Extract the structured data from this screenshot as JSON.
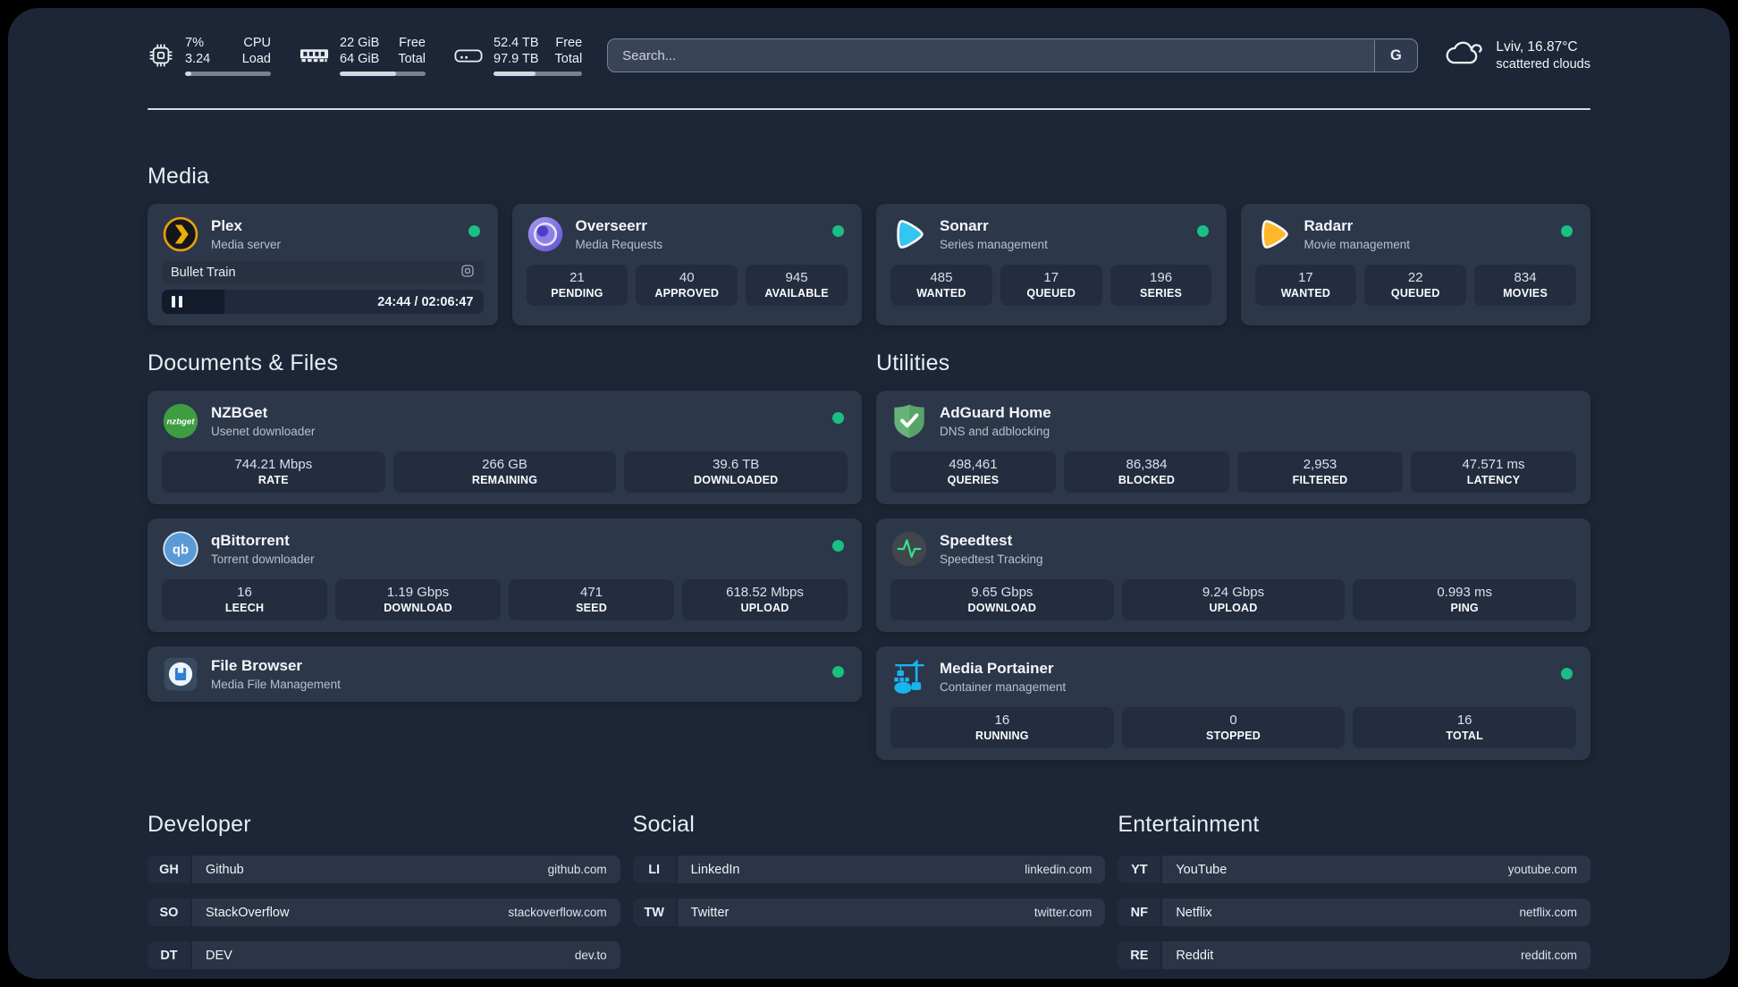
{
  "header": {
    "system_stats": [
      {
        "icon": "cpu-icon",
        "value_top": "7%",
        "label_top": "CPU",
        "value_bottom": "3.24",
        "label_bottom": "Load",
        "progress_pct": 7
      },
      {
        "icon": "memory-icon",
        "value_top": "22 GiB",
        "label_top": "Free",
        "value_bottom": "64 GiB",
        "label_bottom": "Total",
        "progress_pct": 66
      },
      {
        "icon": "storage-icon",
        "value_top": "52.4 TB",
        "label_top": "Free",
        "value_bottom": "97.9 TB",
        "label_bottom": "Total",
        "progress_pct": 47
      }
    ],
    "search": {
      "placeholder": "Search...",
      "engine_label": "G"
    },
    "weather": {
      "location_temperature": "Lviv, 16.87°C",
      "condition": "scattered clouds"
    }
  },
  "sections": {
    "media": {
      "title": "Media",
      "plex": {
        "name": "Plex",
        "description": "Media server",
        "status": "online",
        "now_playing": {
          "title": "Bullet Train",
          "time": "24:44 / 02:06:47",
          "progress_pct": 19.5
        }
      },
      "overseerr": {
        "name": "Overseerr",
        "description": "Media Requests",
        "status": "online",
        "stats": [
          {
            "value": "21",
            "label": "PENDING"
          },
          {
            "value": "40",
            "label": "APPROVED"
          },
          {
            "value": "945",
            "label": "AVAILABLE"
          }
        ]
      },
      "sonarr": {
        "name": "Sonarr",
        "description": "Series management",
        "status": "online",
        "stats": [
          {
            "value": "485",
            "label": "WANTED"
          },
          {
            "value": "17",
            "label": "QUEUED"
          },
          {
            "value": "196",
            "label": "SERIES"
          }
        ]
      },
      "radarr": {
        "name": "Radarr",
        "description": "Movie management",
        "status": "online",
        "stats": [
          {
            "value": "17",
            "label": "WANTED"
          },
          {
            "value": "22",
            "label": "QUEUED"
          },
          {
            "value": "834",
            "label": "MOVIES"
          }
        ]
      }
    },
    "documents_files": {
      "title": "Documents & Files",
      "nzbget": {
        "name": "NZBGet",
        "description": "Usenet downloader",
        "status": "online",
        "stats": [
          {
            "value": "744.21 Mbps",
            "label": "RATE"
          },
          {
            "value": "266 GB",
            "label": "REMAINING"
          },
          {
            "value": "39.6 TB",
            "label": "DOWNLOADED"
          }
        ]
      },
      "qbittorrent": {
        "name": "qBittorrent",
        "description": "Torrent downloader",
        "status": "online",
        "stats": [
          {
            "value": "16",
            "label": "LEECH"
          },
          {
            "value": "1.19 Gbps",
            "label": "DOWNLOAD"
          },
          {
            "value": "471",
            "label": "SEED"
          },
          {
            "value": "618.52 Mbps",
            "label": "UPLOAD"
          }
        ]
      },
      "file_browser": {
        "name": "File Browser",
        "description": "Media File Management",
        "status": "online"
      }
    },
    "utilities": {
      "title": "Utilities",
      "adguard_home": {
        "name": "AdGuard Home",
        "description": "DNS and adblocking",
        "stats": [
          {
            "value": "498,461",
            "label": "QUERIES"
          },
          {
            "value": "86,384",
            "label": "BLOCKED"
          },
          {
            "value": "2,953",
            "label": "FILTERED"
          },
          {
            "value": "47.571 ms",
            "label": "LATENCY"
          }
        ]
      },
      "speedtest": {
        "name": "Speedtest",
        "description": "Speedtest Tracking",
        "stats": [
          {
            "value": "9.65 Gbps",
            "label": "DOWNLOAD"
          },
          {
            "value": "9.24 Gbps",
            "label": "UPLOAD"
          },
          {
            "value": "0.993 ms",
            "label": "PING"
          }
        ]
      },
      "portainer": {
        "name": "Media Portainer",
        "description": "Container management",
        "status": "online",
        "stats": [
          {
            "value": "16",
            "label": "RUNNING"
          },
          {
            "value": "0",
            "label": "STOPPED"
          },
          {
            "value": "16",
            "label": "TOTAL"
          }
        ]
      }
    },
    "bookmarks": [
      {
        "title": "Developer",
        "links": [
          {
            "abbr": "GH",
            "name": "Github",
            "url": "github.com"
          },
          {
            "abbr": "SO",
            "name": "StackOverflow",
            "url": "stackoverflow.com"
          },
          {
            "abbr": "DT",
            "name": "DEV",
            "url": "dev.to"
          }
        ]
      },
      {
        "title": "Social",
        "links": [
          {
            "abbr": "LI",
            "name": "LinkedIn",
            "url": "linkedin.com"
          },
          {
            "abbr": "TW",
            "name": "Twitter",
            "url": "twitter.com"
          }
        ]
      },
      {
        "title": "Entertainment",
        "links": [
          {
            "abbr": "YT",
            "name": "YouTube",
            "url": "youtube.com"
          },
          {
            "abbr": "NF",
            "name": "Netflix",
            "url": "netflix.com"
          },
          {
            "abbr": "RE",
            "name": "Reddit",
            "url": "reddit.com"
          }
        ]
      }
    ]
  },
  "colors": {
    "panel_bg": "#1d2636",
    "card_bg": "#2c3749",
    "stat_box_bg": "#232d3f",
    "status_online": "#19bf83",
    "plex_brand": "#e8a00c",
    "sonarr_brand": "#35c5f1",
    "radarr_brand": "#ffb829",
    "speedtest_pulse": "#35e08e",
    "portainer_brand": "#19b5ee"
  }
}
